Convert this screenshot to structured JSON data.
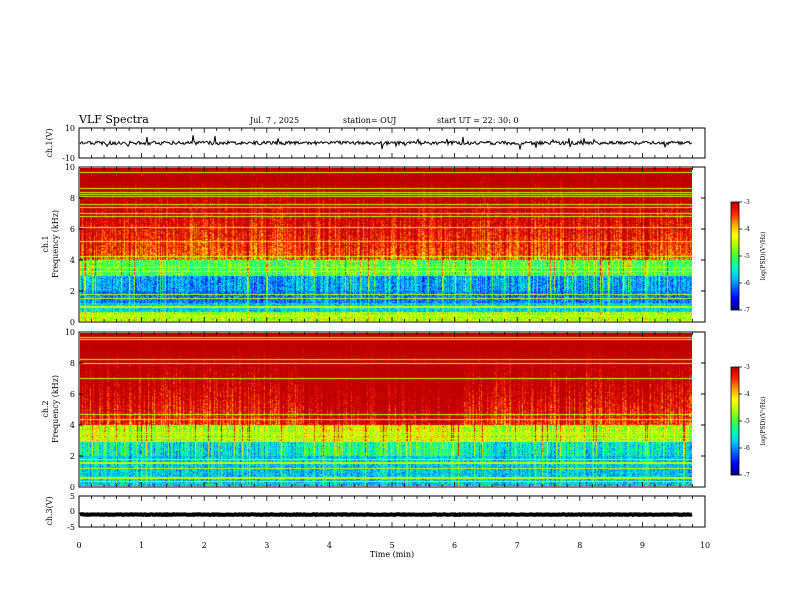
{
  "header": {
    "title": "VLF Spectra",
    "date": "Jul. 7 , 2025",
    "station": "station= OUJ",
    "start_ut": "start UT = 22: 30: 0"
  },
  "chart_data": [
    {
      "type": "line",
      "name": "ch1-waveform",
      "ylabel": "ch.1(V)",
      "ylim": [
        -10,
        10
      ],
      "yticks": [
        "10",
        "-10"
      ],
      "xlim": [
        0,
        10
      ],
      "level": 0,
      "data_end_min": 9.8
    },
    {
      "type": "heatmap",
      "name": "ch1-spectrogram",
      "ylabel": "ch.1\nFrequency (kHz)",
      "ylim": [
        0,
        10
      ],
      "yticks": [
        "0",
        "2",
        "4",
        "6",
        "8",
        "10"
      ],
      "xlim": [
        0,
        10
      ],
      "data_end_min": 9.8,
      "colorbar": {
        "label": "log(PSD)(V²/Hz)",
        "range": [
          -7,
          -3
        ],
        "ticks": [
          "-3",
          "-4",
          "-5",
          "-6",
          "-7"
        ]
      }
    },
    {
      "type": "heatmap",
      "name": "ch2-spectrogram",
      "ylabel": "ch.2\nFrequency (kHz)",
      "ylim": [
        0,
        10
      ],
      "yticks": [
        "0",
        "2",
        "4",
        "6",
        "8",
        "10"
      ],
      "xlim": [
        0,
        10
      ],
      "data_end_min": 9.8,
      "colorbar": {
        "label": "log(PSD)(V²/Hz)",
        "range": [
          -7,
          -3
        ],
        "ticks": [
          "-3",
          "-4",
          "-5",
          "-6",
          "-7"
        ]
      }
    },
    {
      "type": "line",
      "name": "ch3-waveform",
      "ylabel": "ch.3(V)",
      "ylim": [
        -5,
        5
      ],
      "yticks": [
        "5",
        "0",
        "-5"
      ],
      "xlim": [
        0,
        10
      ],
      "level": -1,
      "data_end_min": 9.8
    }
  ],
  "x_axis": {
    "label": "Time (min)",
    "ticks": [
      "0",
      "1",
      "2",
      "3",
      "4",
      "5",
      "6",
      "7",
      "8",
      "9",
      "10"
    ]
  },
  "colors": {
    "colormap": [
      "#00007a",
      "#0000ff",
      "#0060ff",
      "#00c8ff",
      "#00ffb0",
      "#40ff40",
      "#b0ff00",
      "#ffff00",
      "#ffa000",
      "#ff2000",
      "#c00000"
    ]
  }
}
